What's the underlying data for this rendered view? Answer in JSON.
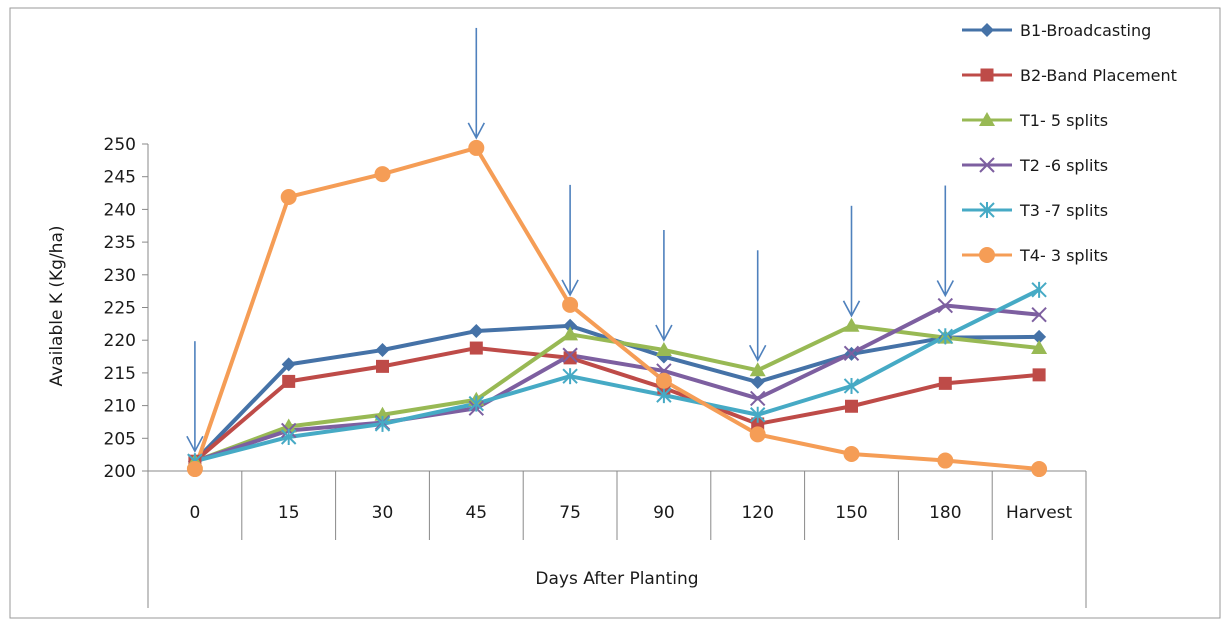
{
  "chart_data": {
    "type": "line",
    "title": "",
    "xlabel": "Days After Planting",
    "ylabel": "Available K (Kg/ha)",
    "ylim": [
      200,
      250
    ],
    "ytick_step": 5,
    "categories": [
      "0",
      "15",
      "30",
      "45",
      "75",
      "90",
      "120",
      "150",
      "180",
      "Harvest"
    ],
    "legend_position": "right",
    "series": [
      {
        "name": "B1-Broadcasting",
        "color": "#4572A7",
        "marker": "diamond",
        "values": [
          201.5,
          216.3,
          218.5,
          221.4,
          222.2,
          217.5,
          213.6,
          217.9,
          220.4,
          220.5
        ]
      },
      {
        "name": "B2-Band Placement",
        "color": "#BE4B48",
        "marker": "square",
        "values": [
          201.5,
          213.7,
          216.0,
          218.8,
          217.3,
          212.7,
          207.2,
          209.9,
          213.4,
          214.7
        ]
      },
      {
        "name": "T1- 5 splits",
        "color": "#98B954",
        "marker": "triangle",
        "values": [
          201.5,
          206.8,
          208.6,
          210.9,
          220.9,
          218.5,
          215.4,
          222.2,
          220.4,
          218.8
        ]
      },
      {
        "name": "T2 -6 splits",
        "color": "#7D5FA0",
        "marker": "x",
        "values": [
          201.5,
          206.2,
          207.4,
          209.6,
          217.7,
          215.3,
          211.1,
          218.0,
          225.3,
          223.9
        ]
      },
      {
        "name": "T3 -7 splits",
        "color": "#46AAC5",
        "marker": "star",
        "values": [
          201.5,
          205.2,
          207.2,
          210.3,
          214.5,
          211.6,
          208.6,
          213.0,
          220.6,
          227.7
        ]
      },
      {
        "name": "T4- 3 splits",
        "color": "#F59D56",
        "marker": "circle",
        "values": [
          200.3,
          241.9,
          245.4,
          249.4,
          225.4,
          213.8,
          205.6,
          202.6,
          201.6,
          200.3
        ]
      }
    ],
    "annotations": {
      "type": "down-arrows",
      "color": "#4F81BD",
      "categories": [
        "0",
        "45",
        "75",
        "90",
        "120",
        "150",
        "180"
      ]
    }
  }
}
